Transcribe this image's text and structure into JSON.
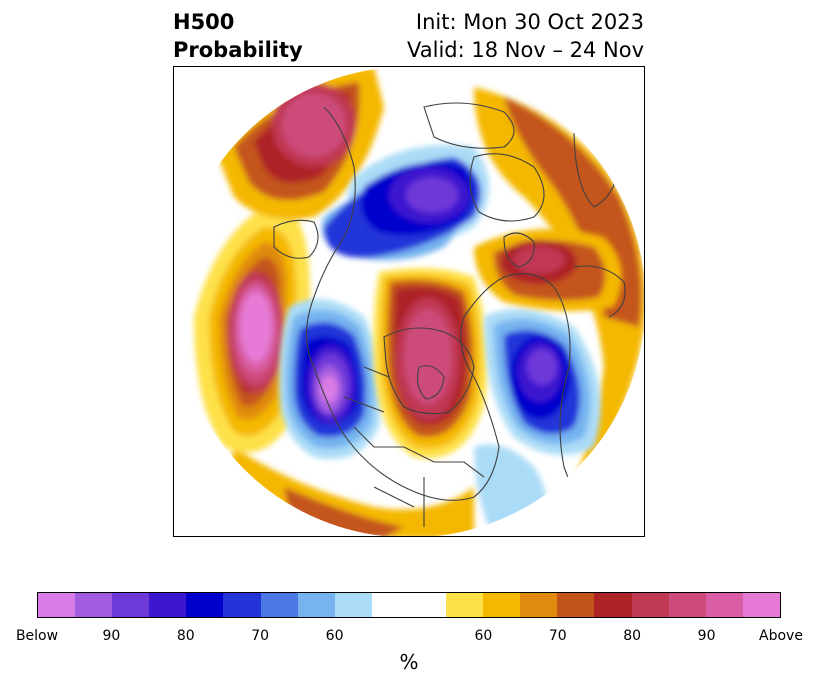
{
  "header": {
    "product": "H500",
    "product_type": "Probability",
    "init": "Init: Mon 30 Oct 2023",
    "valid": "Valid: 18 Nov – 24 Nov"
  },
  "map": {
    "projection": "polar stereographic",
    "outline_color": "#404040",
    "anomalies": [
      {
        "region": "North Pacific",
        "category": "Above",
        "peak": "Above"
      },
      {
        "region": "Western North America / Alaska coast",
        "category": "Below",
        "peak": "90"
      },
      {
        "region": "Central Canada / Hudson Bay",
        "category": "Above",
        "peak": "90"
      },
      {
        "region": "North Atlantic",
        "category": "Below",
        "peak": "90"
      },
      {
        "region": "Siberia / Arctic",
        "category": "Below",
        "peak": "90"
      },
      {
        "region": "East Siberia",
        "category": "Above",
        "peak": "90"
      },
      {
        "region": "Northern Europe / Scandinavia",
        "category": "Above",
        "peak": "80"
      }
    ]
  },
  "colorbar": {
    "colors": [
      "#d97be6",
      "#a25ce0",
      "#6e39d9",
      "#3c17cf",
      "#0000cc",
      "#2335d9",
      "#4b78e5",
      "#76b3ef",
      "#abdcf7",
      "#ffffff",
      "#ffffff",
      "#fee14a",
      "#f4b800",
      "#e08b0e",
      "#c4551a",
      "#ad2326",
      "#c03952",
      "#cc4b7a",
      "#d95ea6",
      "#e67ad6"
    ],
    "ticks": [
      "Below",
      "90",
      "80",
      "70",
      "60",
      "60",
      "70",
      "80",
      "90",
      "Above"
    ],
    "label": "%"
  }
}
